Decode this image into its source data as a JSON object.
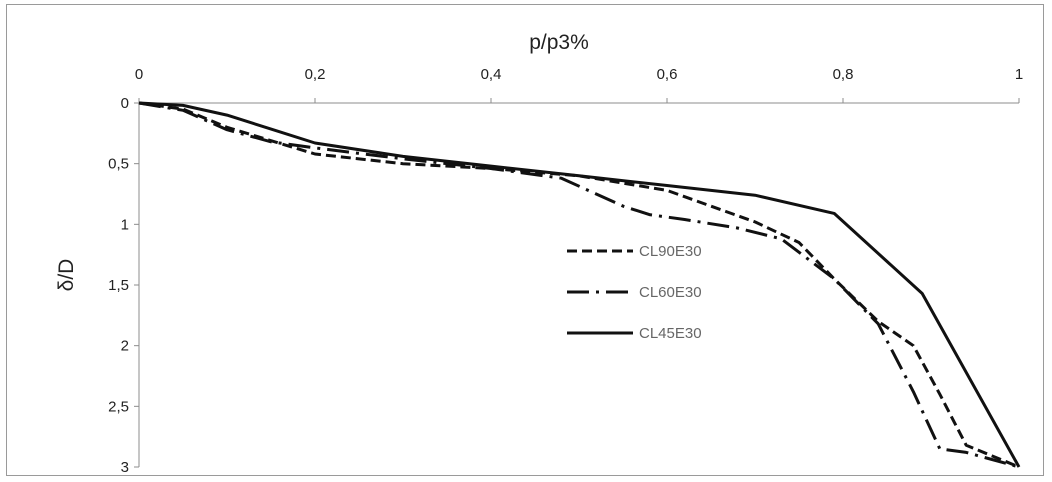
{
  "chart_data": {
    "type": "line",
    "xlabel": "p/p3%",
    "ylabel": "δ/D",
    "xlim": [
      0,
      1
    ],
    "ylim": [
      0,
      3
    ],
    "y_inverted": true,
    "x_axis_position": "top",
    "x_ticks": [
      "0",
      "0,2",
      "0,4",
      "0,6",
      "0,8",
      "1"
    ],
    "x_tick_values": [
      0,
      0.2,
      0.4,
      0.6,
      0.8,
      1
    ],
    "y_ticks": [
      "0",
      "0,5",
      "1",
      "1,5",
      "2",
      "2,5",
      "3"
    ],
    "y_tick_values": [
      0,
      0.5,
      1,
      1.5,
      2,
      2.5,
      3
    ],
    "grid": false,
    "legend_position": "bottom-right",
    "series": [
      {
        "name": "CL90E30",
        "style": "dashed",
        "color": "#111111",
        "x": [
          0,
          0.05,
          0.1,
          0.2,
          0.3,
          0.4,
          0.5,
          0.6,
          0.7,
          0.75,
          0.79,
          0.84,
          0.88,
          0.91,
          0.94,
          1.0
        ],
        "y": [
          0,
          0.05,
          0.2,
          0.42,
          0.5,
          0.54,
          0.6,
          0.72,
          0.98,
          1.15,
          1.45,
          1.8,
          2.0,
          2.4,
          2.82,
          3.0
        ]
      },
      {
        "name": "CL60E30",
        "style": "dash-dot",
        "color": "#111111",
        "x": [
          0,
          0.05,
          0.1,
          0.15,
          0.2,
          0.3,
          0.4,
          0.48,
          0.55,
          0.58,
          0.62,
          0.68,
          0.73,
          0.79,
          0.84,
          0.88,
          0.91,
          0.94,
          1.0
        ],
        "y": [
          0,
          0.06,
          0.22,
          0.32,
          0.37,
          0.46,
          0.54,
          0.62,
          0.85,
          0.92,
          0.96,
          1.03,
          1.12,
          1.45,
          1.82,
          2.38,
          2.85,
          2.88,
          3.0
        ]
      },
      {
        "name": "CL45E30",
        "style": "solid",
        "color": "#111111",
        "x": [
          0,
          0.05,
          0.1,
          0.2,
          0.3,
          0.4,
          0.5,
          0.6,
          0.7,
          0.79,
          0.89,
          1.0
        ],
        "y": [
          0,
          0.02,
          0.1,
          0.33,
          0.44,
          0.52,
          0.6,
          0.68,
          0.76,
          0.91,
          1.57,
          3.0
        ]
      }
    ]
  }
}
